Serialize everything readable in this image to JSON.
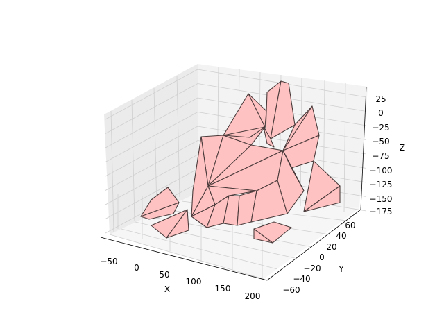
{
  "chart_data": {
    "type": "3d-polygon-mesh",
    "title": "",
    "xlabel": "X",
    "ylabel": "Y",
    "zlabel": "Z",
    "xlim": [
      -70,
      210
    ],
    "ylim": [
      -75,
      75
    ],
    "zlim": [
      -180,
      40
    ],
    "xticks": [
      "−50",
      "0",
      "50",
      "100",
      "150",
      "200"
    ],
    "yticks": [
      "−60",
      "−40",
      "−20",
      "0",
      "20",
      "40",
      "60"
    ],
    "zticks": [
      "25",
      "0",
      "−25",
      "−50",
      "−75",
      "−100",
      "−125",
      "−150",
      "−175"
    ],
    "grid": true,
    "face_color": "#ffc2c2",
    "edge_color": "#4a3a3a",
    "pane_colors": {
      "left": "#ebebeb",
      "right": "#f3f3f3",
      "floor": "#f6f6f6"
    }
  }
}
